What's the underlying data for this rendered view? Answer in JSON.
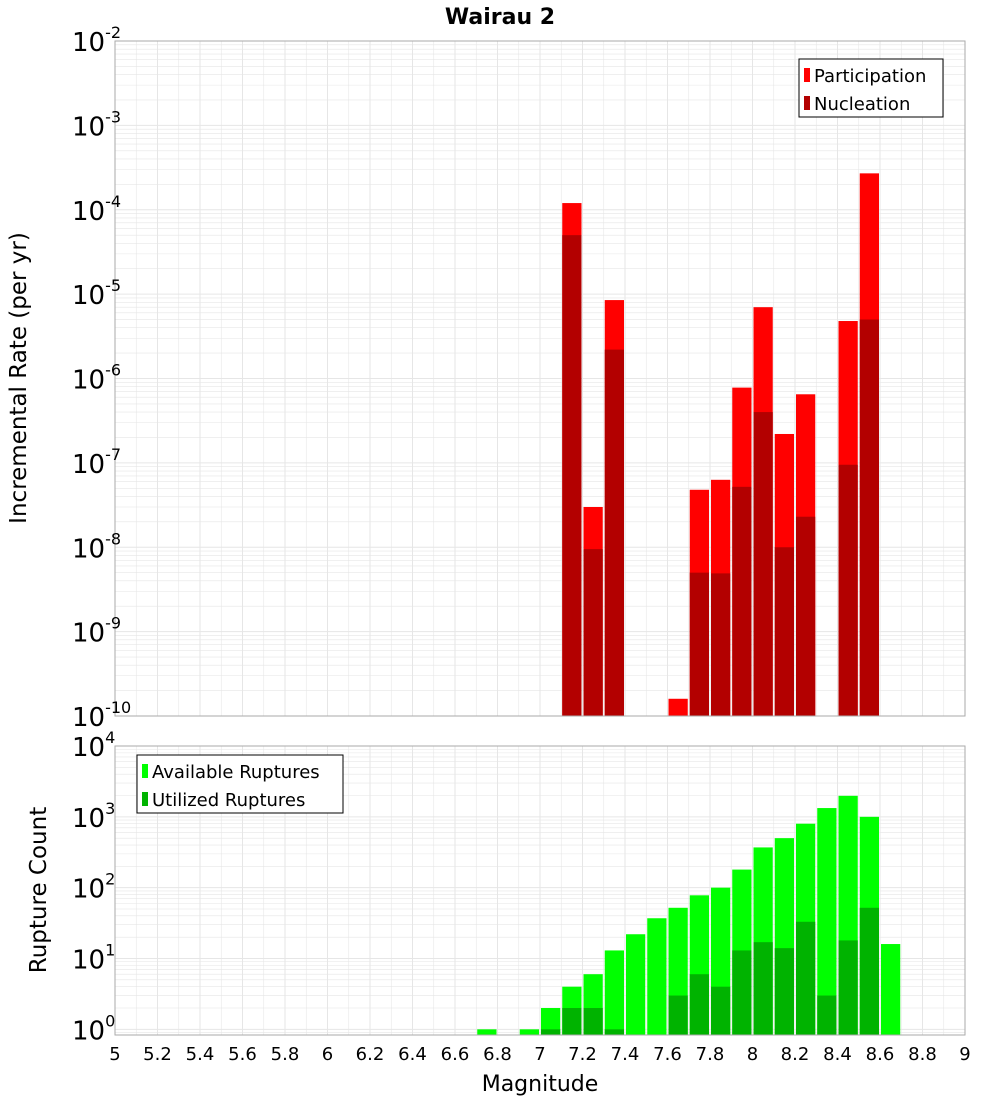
{
  "title": "Wairau 2",
  "chart_data": [
    {
      "type": "bar",
      "scale": "log",
      "ylabel": "Incremental Rate (per yr)",
      "ylim_exponents": [
        -10,
        -2
      ],
      "legend_position": "top-right",
      "series": [
        {
          "name": "Participation",
          "color": "#ff0000",
          "points": [
            {
              "x": 7.15,
              "y": 0.00012
            },
            {
              "x": 7.25,
              "y": 3e-08
            },
            {
              "x": 7.35,
              "y": 8.5e-06
            },
            {
              "x": 7.65,
              "y": 1.6e-10
            },
            {
              "x": 7.75,
              "y": 4.8e-08
            },
            {
              "x": 7.85,
              "y": 6.3e-08
            },
            {
              "x": 7.95,
              "y": 7.8e-07
            },
            {
              "x": 8.05,
              "y": 7e-06
            },
            {
              "x": 8.15,
              "y": 2.2e-07
            },
            {
              "x": 8.25,
              "y": 6.5e-07
            },
            {
              "x": 8.45,
              "y": 4.8e-06
            },
            {
              "x": 8.55,
              "y": 0.00027
            }
          ]
        },
        {
          "name": "Nucleation",
          "color": "#b30000",
          "points": [
            {
              "x": 7.15,
              "y": 5e-05
            },
            {
              "x": 7.25,
              "y": 9.5e-09
            },
            {
              "x": 7.35,
              "y": 2.2e-06
            },
            {
              "x": 7.75,
              "y": 5e-09
            },
            {
              "x": 7.85,
              "y": 4.9e-09
            },
            {
              "x": 7.95,
              "y": 5.2e-08
            },
            {
              "x": 8.05,
              "y": 4e-07
            },
            {
              "x": 8.15,
              "y": 1e-08
            },
            {
              "x": 8.25,
              "y": 2.3e-08
            },
            {
              "x": 8.45,
              "y": 9.5e-08
            },
            {
              "x": 8.55,
              "y": 5e-06
            }
          ]
        }
      ]
    },
    {
      "type": "bar",
      "scale": "log",
      "xlabel": "Magnitude",
      "ylabel": "Rupture Count",
      "ylim_exponents": [
        -0.08,
        4
      ],
      "legend_position": "top-left",
      "series": [
        {
          "name": "Available Ruptures",
          "color": "#00ff00",
          "points": [
            {
              "x": 6.75,
              "y": 1
            },
            {
              "x": 6.95,
              "y": 1
            },
            {
              "x": 7.05,
              "y": 2
            },
            {
              "x": 7.15,
              "y": 4
            },
            {
              "x": 7.25,
              "y": 6
            },
            {
              "x": 7.35,
              "y": 13
            },
            {
              "x": 7.45,
              "y": 22
            },
            {
              "x": 7.55,
              "y": 37
            },
            {
              "x": 7.65,
              "y": 52
            },
            {
              "x": 7.75,
              "y": 78
            },
            {
              "x": 7.85,
              "y": 100
            },
            {
              "x": 7.95,
              "y": 180
            },
            {
              "x": 8.05,
              "y": 370
            },
            {
              "x": 8.15,
              "y": 500
            },
            {
              "x": 8.25,
              "y": 800
            },
            {
              "x": 8.35,
              "y": 1330
            },
            {
              "x": 8.45,
              "y": 1980
            },
            {
              "x": 8.55,
              "y": 1000
            },
            {
              "x": 8.65,
              "y": 16
            }
          ]
        },
        {
          "name": "Utilized Ruptures",
          "color": "#00b300",
          "points": [
            {
              "x": 7.05,
              "y": 1
            },
            {
              "x": 7.15,
              "y": 2
            },
            {
              "x": 7.25,
              "y": 2
            },
            {
              "x": 7.35,
              "y": 1
            },
            {
              "x": 7.65,
              "y": 3
            },
            {
              "x": 7.75,
              "y": 6
            },
            {
              "x": 7.85,
              "y": 4
            },
            {
              "x": 7.95,
              "y": 13
            },
            {
              "x": 8.05,
              "y": 17
            },
            {
              "x": 8.15,
              "y": 14
            },
            {
              "x": 8.25,
              "y": 33
            },
            {
              "x": 8.35,
              "y": 3
            },
            {
              "x": 8.45,
              "y": 18
            },
            {
              "x": 8.55,
              "y": 52
            }
          ]
        }
      ]
    }
  ],
  "x_axis": {
    "min": 5,
    "max": 9,
    "ticks": [
      "5",
      "5.2",
      "5.4",
      "5.6",
      "5.8",
      "6",
      "6.2",
      "6.4",
      "6.6",
      "6.8",
      "7",
      "7.2",
      "7.4",
      "7.6",
      "7.8",
      "8",
      "8.2",
      "8.4",
      "8.6",
      "8.8",
      "9"
    ]
  },
  "colors": {
    "grid": "#e6e6e6",
    "frame": "#aaaaaa"
  }
}
